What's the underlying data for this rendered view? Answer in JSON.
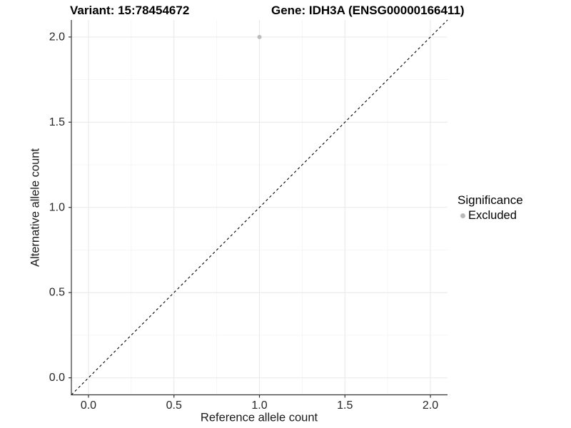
{
  "header": {
    "title_left": "Variant: 15:78454672",
    "title_right": "Gene: IDH3A (ENSG00000166411)"
  },
  "chart_data": {
    "type": "scatter",
    "title": "Variant: 15:78454672    Gene: IDH3A (ENSG00000166411)",
    "xlabel": "Reference allele count",
    "ylabel": "Alternative allele count",
    "xlim": [
      -0.1,
      2.1
    ],
    "ylim": [
      -0.1,
      2.1
    ],
    "x_ticks": [
      0.0,
      0.5,
      1.0,
      1.5,
      2.0
    ],
    "x_tick_labels": [
      "0.0",
      "0.5",
      "1.0",
      "1.5",
      "2.0"
    ],
    "y_ticks": [
      0.0,
      0.5,
      1.0,
      1.5,
      2.0
    ],
    "y_tick_labels": [
      "0.0",
      "0.5",
      "1.0",
      "1.5",
      "2.0"
    ],
    "x_minor_ticks": [
      0.25,
      0.75,
      1.25,
      1.75
    ],
    "y_minor_ticks": [
      0.25,
      0.75,
      1.25,
      1.75
    ],
    "grid": "major+minor",
    "series": [
      {
        "name": "Excluded",
        "color": "#bdbdbd",
        "marker": "circle",
        "points": [
          {
            "x": 1.0,
            "y": 2.0
          }
        ]
      }
    ],
    "reference_line": {
      "kind": "identity",
      "slope": 1,
      "intercept": 0,
      "style": "dashed",
      "color": "#000000"
    },
    "legend": {
      "title": "Significance",
      "position": "right",
      "entries": [
        {
          "label": "Excluded",
          "color": "#b9b9b9",
          "marker": "circle"
        }
      ]
    }
  },
  "style_colors": {
    "background": "#ffffff",
    "grid_major": "#e9e9e9",
    "grid_minor": "#f5f5f5",
    "axis_line": "#333333",
    "tick_mark": "#333333",
    "tick_text": "#262626",
    "point_gray": "#bdbdbd"
  }
}
